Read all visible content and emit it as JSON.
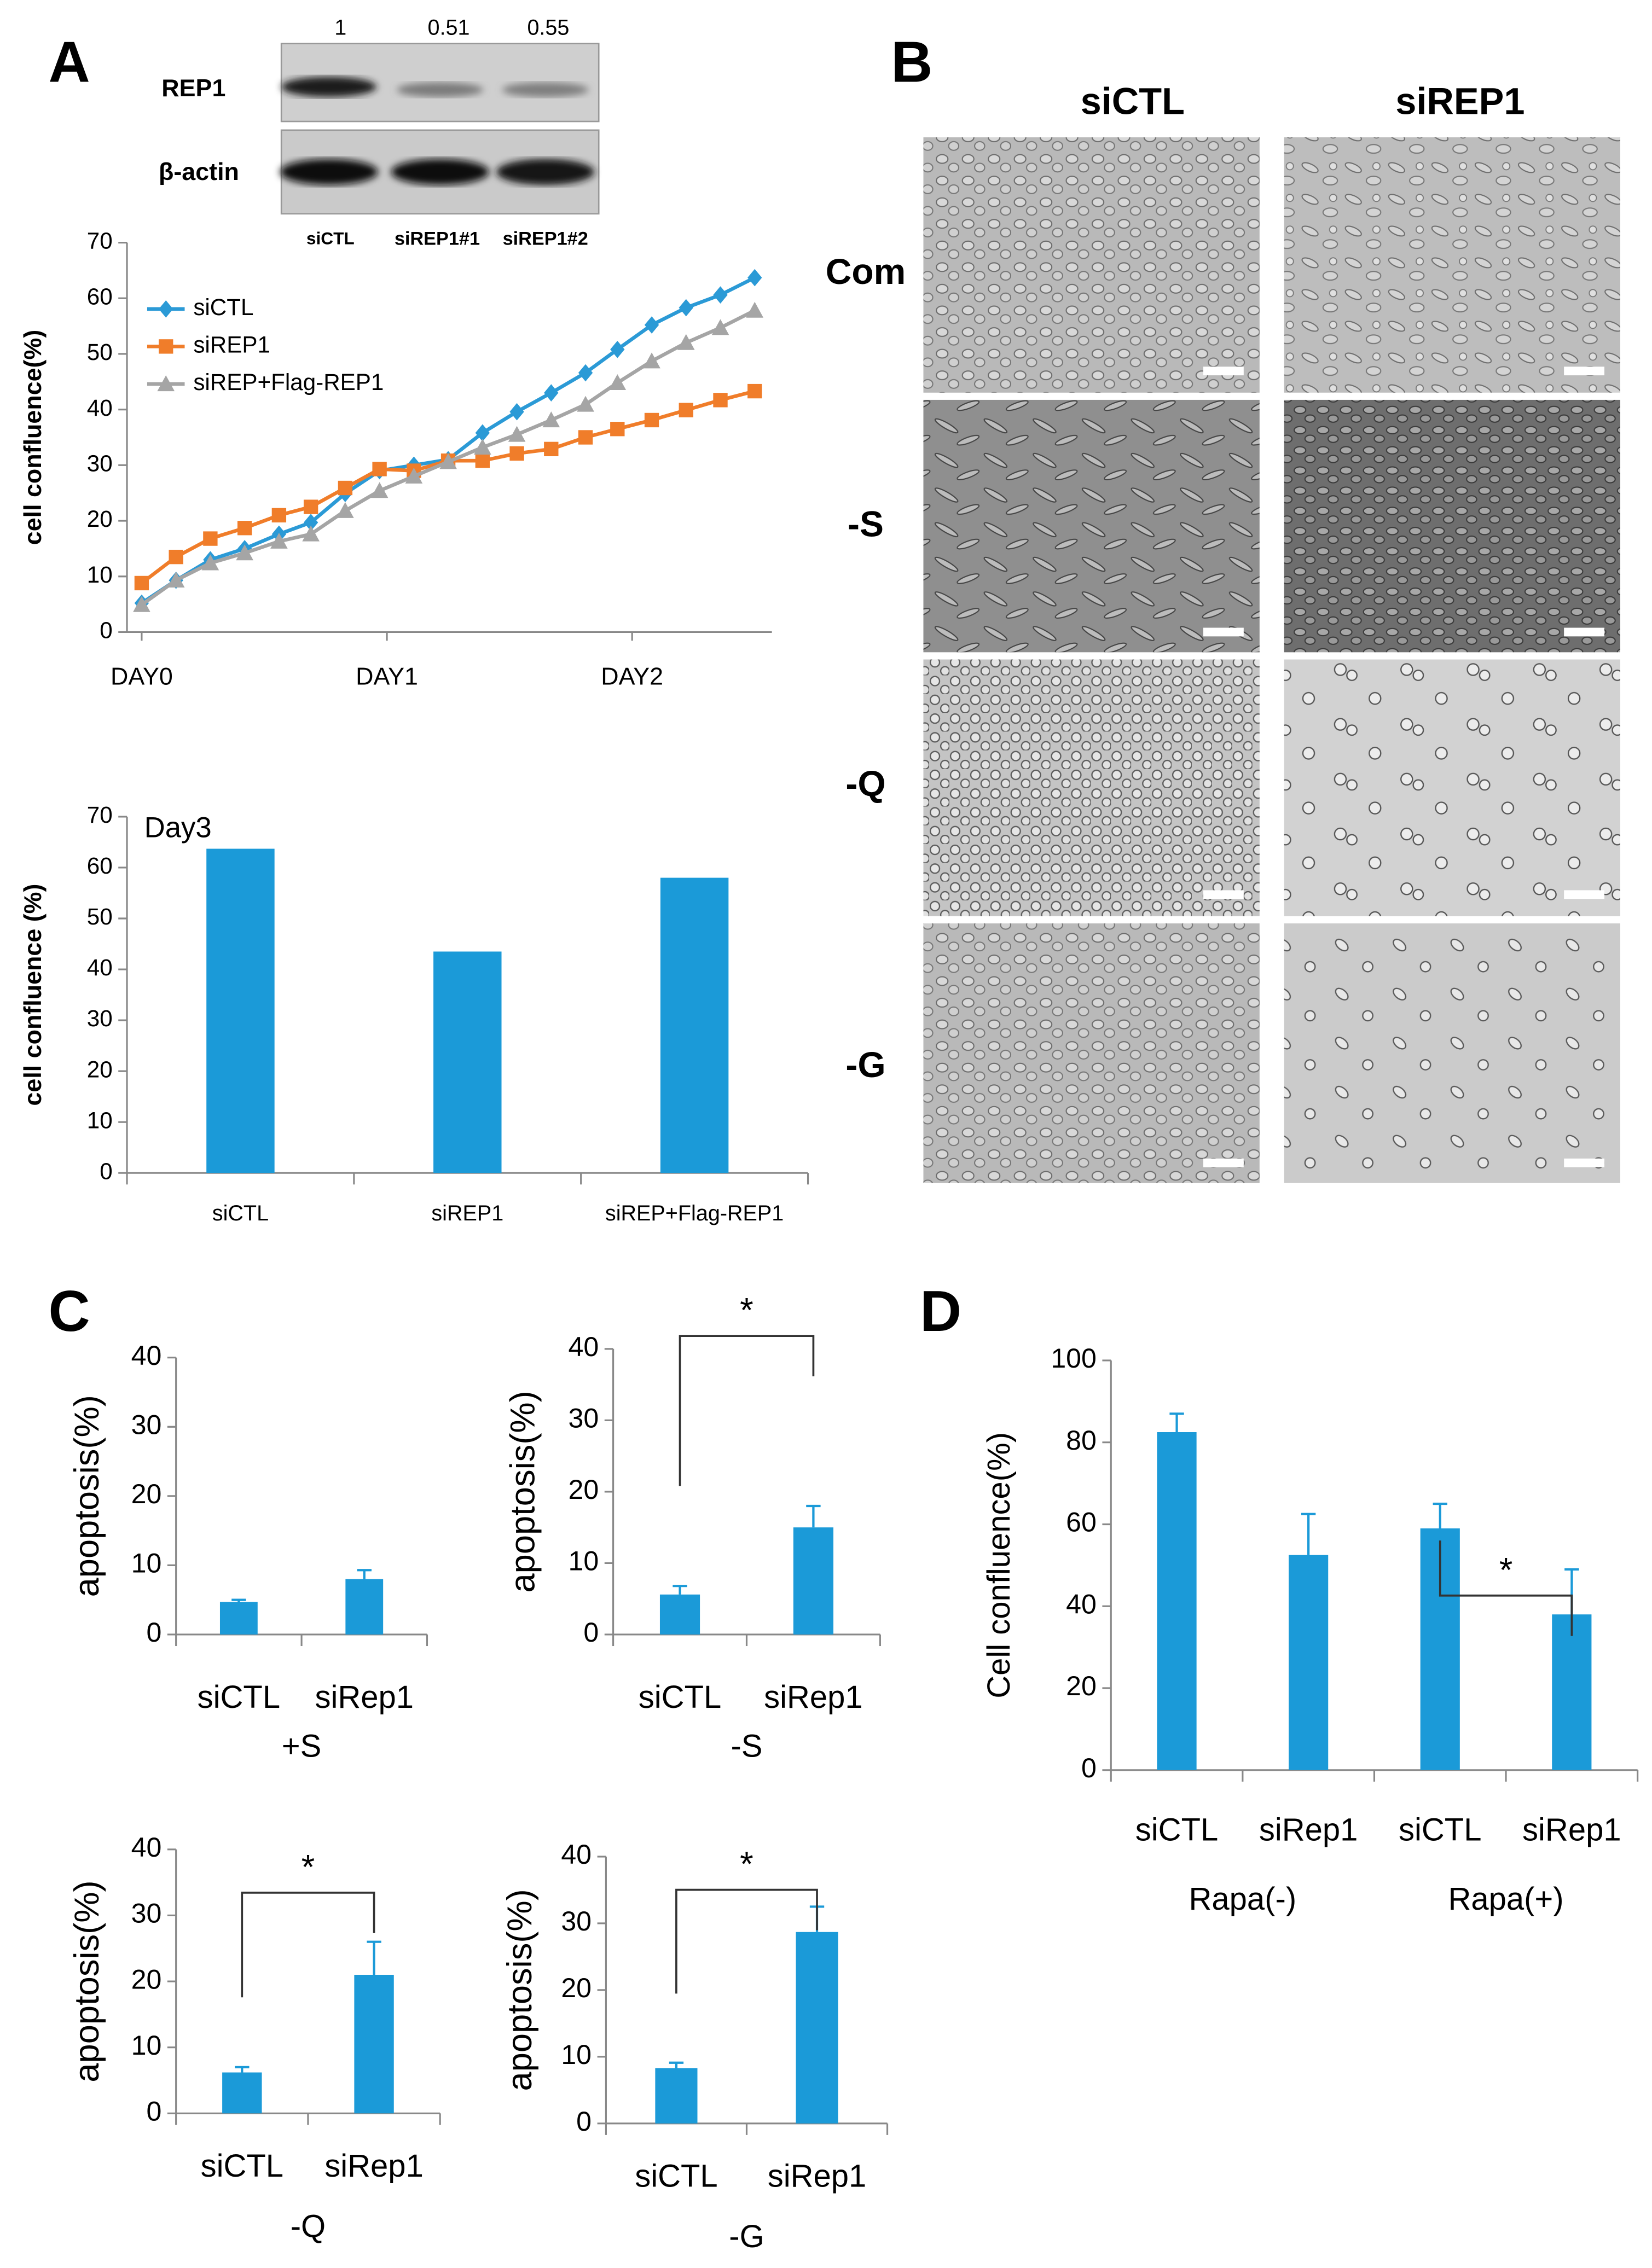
{
  "panel_labels": [
    "A",
    "B",
    "C",
    "D"
  ],
  "blot": {
    "proteins": [
      "REP1",
      "β-actin"
    ],
    "ratios": [
      1,
      0.51,
      0.55
    ],
    "lanes": [
      "siCTL",
      "siREP1#1",
      "siREP1#2"
    ]
  },
  "micrographs": {
    "columns": [
      "siCTL",
      "siREP1"
    ],
    "rows": [
      "Com",
      "-S",
      "-Q",
      "-G"
    ]
  },
  "chart_data": [
    {
      "type": "line",
      "ylabel": "cell confluence(%)",
      "x": [
        0,
        0.14,
        0.28,
        0.42,
        0.56,
        0.69,
        0.83,
        0.97,
        1.11,
        1.25,
        1.39,
        1.53,
        1.67,
        1.81,
        1.94,
        2.08,
        2.22,
        2.36,
        2.5
      ],
      "xlim": [
        -0.06,
        2.57
      ],
      "xticks": [
        {
          "value": 0,
          "label": "DAY0"
        },
        {
          "value": 1,
          "label": "DAY1"
        },
        {
          "value": 2,
          "label": "DAY2"
        }
      ],
      "ylim": [
        0,
        70
      ],
      "yticks": [
        0,
        10,
        20,
        30,
        40,
        50,
        60,
        70
      ],
      "legend": "upper left",
      "series": [
        {
          "name": "siCTL",
          "color": "#2b9ad6",
          "marker": "diamond",
          "values": [
            5.2,
            9.3,
            13,
            15,
            17.6,
            19.7,
            24.9,
            29,
            30,
            31,
            35.8,
            39.6,
            43,
            46.6,
            50.8,
            55.2,
            58.3,
            60.6,
            63.7
          ]
        },
        {
          "name": "siREP1",
          "color": "#f07d2a",
          "marker": "square",
          "values": [
            8.8,
            13.5,
            16.8,
            18.7,
            21,
            22.5,
            25.9,
            29.3,
            29,
            30.8,
            30.8,
            32.1,
            32.9,
            35,
            36.5,
            38.1,
            39.9,
            41.7,
            43.3
          ]
        },
        {
          "name": "siREP+Flag-REP1",
          "color": "#a5a5a5",
          "marker": "triangle",
          "values": [
            4.9,
            9.3,
            12.4,
            14.2,
            16.3,
            17.6,
            21.8,
            25.4,
            28,
            30.6,
            33.2,
            35.5,
            38.1,
            40.9,
            44.8,
            48.7,
            52,
            54.7,
            57.8
          ]
        }
      ]
    },
    {
      "type": "bar",
      "annotation": "Day3",
      "ylabel": "cell confluence (%)",
      "categories": [
        "siCTL",
        "siREP1",
        "siREP+Flag-REP1"
      ],
      "values": [
        63.7,
        43.5,
        58
      ],
      "color": "#1b9ad8",
      "ylim": [
        0,
        70
      ],
      "yticks": [
        0,
        10,
        20,
        30,
        40,
        50,
        60,
        70
      ]
    },
    {
      "type": "bar",
      "ylabel": "apoptosis(%)",
      "xlabel": "+S",
      "categories": [
        "siCTL",
        "siRep1"
      ],
      "values": [
        4.7,
        8
      ],
      "errors": [
        0.3,
        1.3
      ],
      "color": "#1b9ad8",
      "ylim": [
        0,
        40
      ],
      "yticks": [
        0,
        10,
        20,
        30,
        40
      ]
    },
    {
      "type": "bar",
      "ylabel": "apoptosis(%)",
      "xlabel": "-S",
      "categories": [
        "siCTL",
        "siRep1"
      ],
      "values": [
        5.6,
        15
      ],
      "errors": [
        1.2,
        3
      ],
      "color": "#1b9ad8",
      "ylim": [
        0,
        40
      ],
      "yticks": [
        0,
        10,
        20,
        30,
        40
      ],
      "annotation": "*",
      "bracket": [
        0,
        1
      ]
    },
    {
      "type": "bar",
      "ylabel": "apoptosis(%)",
      "xlabel": "-Q",
      "categories": [
        "siCTL",
        "siRep1"
      ],
      "values": [
        6.2,
        21
      ],
      "errors": [
        0.8,
        5
      ],
      "color": "#1b9ad8",
      "ylim": [
        0,
        40
      ],
      "yticks": [
        0,
        10,
        20,
        30,
        40
      ],
      "annotation": "*",
      "bracket": [
        0,
        1
      ]
    },
    {
      "type": "bar",
      "ylabel": "apoptosis(%)",
      "xlabel": "-G",
      "categories": [
        "siCTL",
        "siRep1"
      ],
      "values": [
        8.3,
        28.7
      ],
      "errors": [
        0.8,
        3.8
      ],
      "color": "#1b9ad8",
      "ylim": [
        0,
        40
      ],
      "yticks": [
        0,
        10,
        20,
        30,
        40
      ],
      "annotation": "*",
      "bracket": [
        0,
        1
      ]
    },
    {
      "type": "bar",
      "ylabel": "Cell confluence(%)",
      "categories": [
        "siCTL",
        "siRep1",
        "siCTL",
        "siRep1"
      ],
      "groups": [
        "Rapa(-)",
        "Rapa(+)"
      ],
      "values": [
        82.5,
        52.5,
        59,
        38
      ],
      "errors": [
        4.5,
        10,
        6,
        11
      ],
      "color": "#1b9ad8",
      "ylim": [
        0,
        100
      ],
      "yticks": [
        0,
        20,
        40,
        60,
        80,
        100
      ],
      "annotation": "*",
      "bracket": [
        2,
        3
      ]
    }
  ]
}
